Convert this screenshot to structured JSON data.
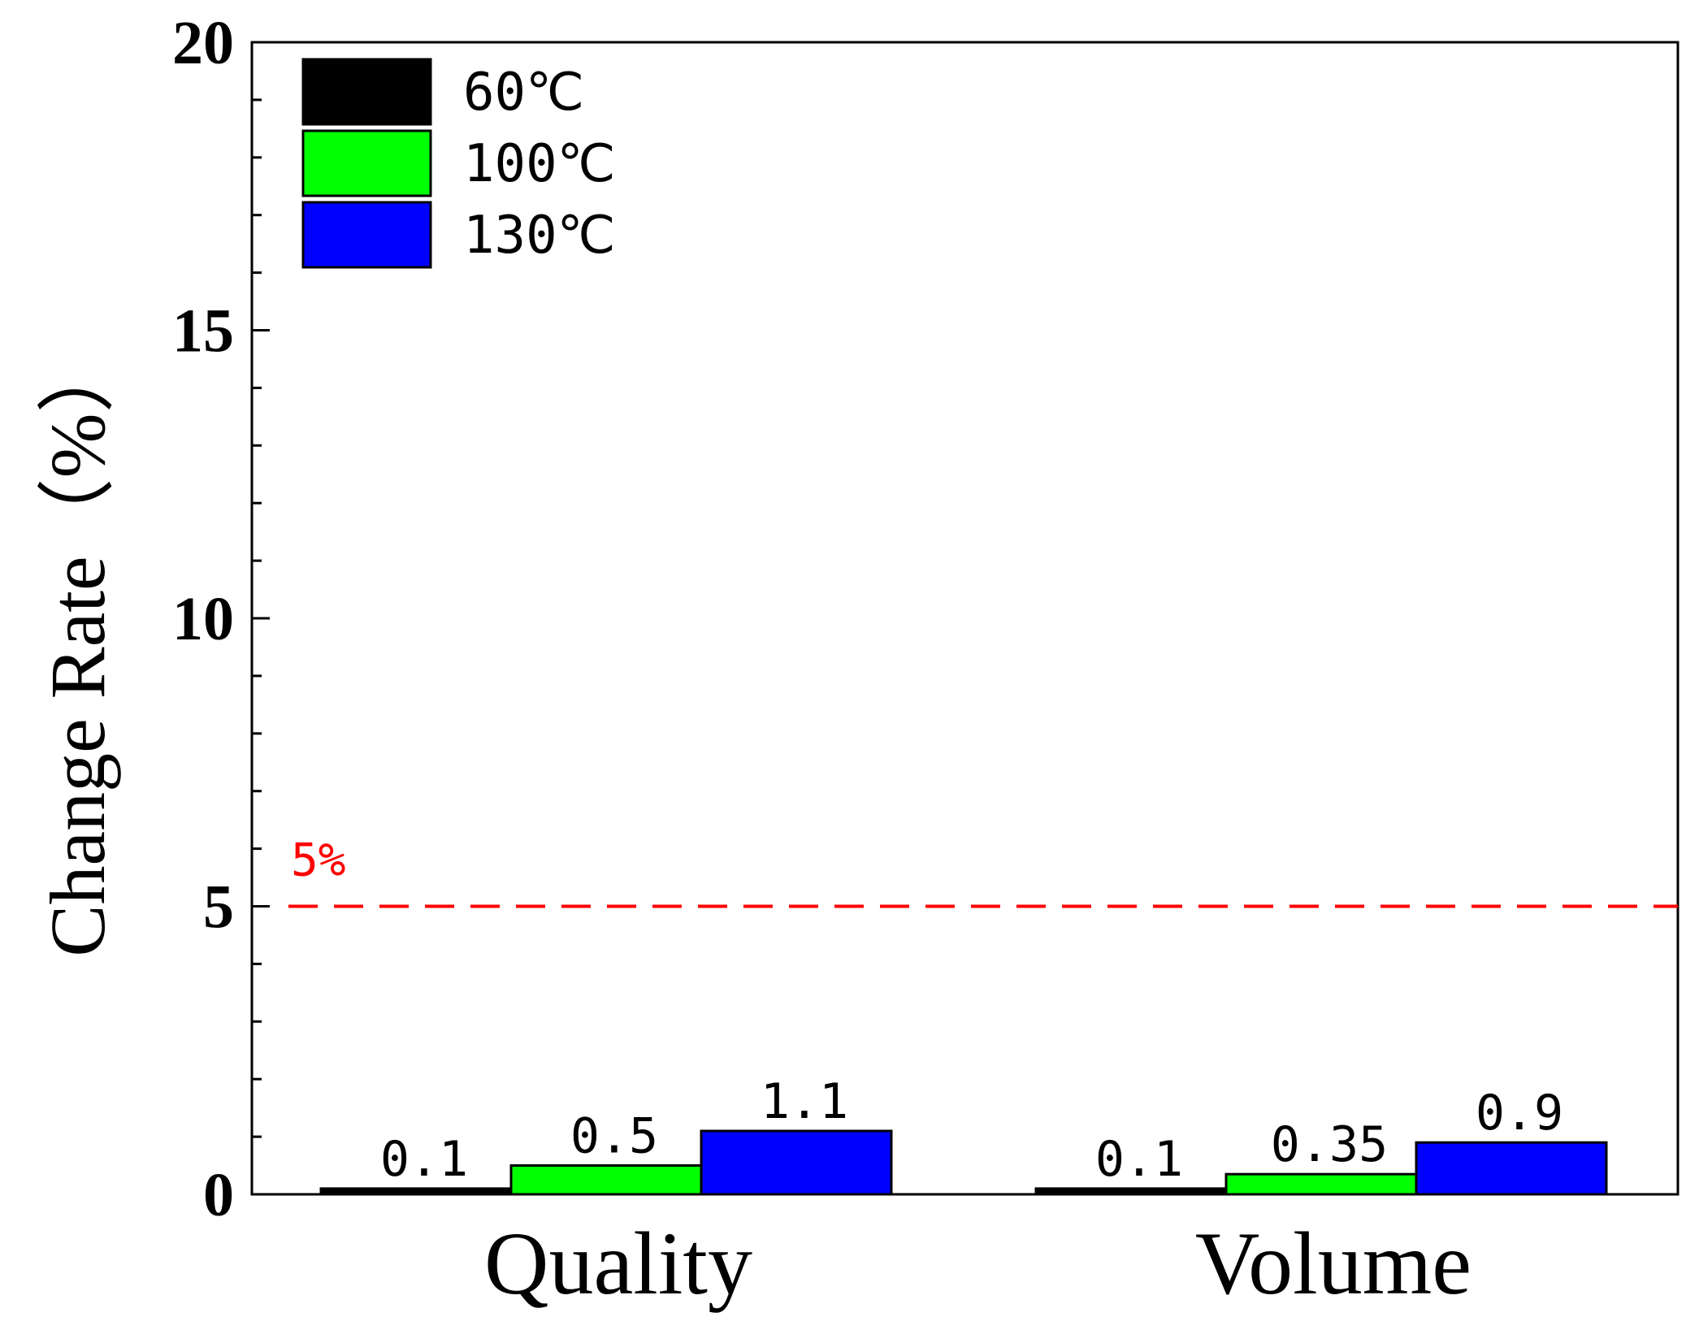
{
  "chart_data": {
    "type": "bar",
    "categories": [
      "Quality",
      "Volume"
    ],
    "series": [
      {
        "name": "60℃",
        "color": "#000000",
        "values": [
          0.1,
          0.1
        ],
        "labels": [
          "0.1",
          "0.1"
        ]
      },
      {
        "name": "100℃",
        "color": "#00ff00",
        "values": [
          0.5,
          0.35
        ],
        "labels": [
          "0.5",
          "0.35"
        ]
      },
      {
        "name": "130℃",
        "color": "#0000ff",
        "values": [
          1.1,
          0.9
        ],
        "labels": [
          "1.1",
          "0.9"
        ]
      }
    ],
    "ylabel": "Change Rate（%）",
    "xlabel": "",
    "ylim": [
      0,
      20
    ],
    "yticks": [
      0,
      5,
      10,
      15,
      20
    ],
    "yminor_step": 1,
    "grid": false,
    "legend_position": "top-left",
    "reference_line": {
      "value": 5,
      "label": "5%",
      "color": "#ff0000",
      "style": "dashed"
    }
  }
}
